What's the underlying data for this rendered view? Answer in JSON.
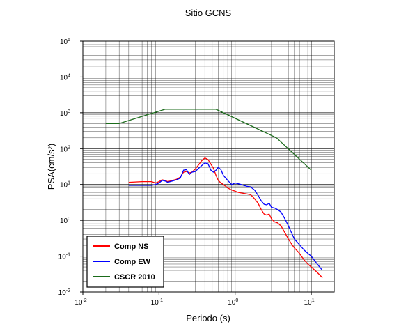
{
  "chart_data": {
    "type": "line",
    "title": "Sitio GCNS",
    "xlabel": "Periodo (s)",
    "ylabel": "PSA(cm/s²)",
    "xscale": "log",
    "yscale": "log",
    "xlim": [
      0.01,
      20
    ],
    "ylim": [
      0.01,
      100000
    ],
    "grid": true,
    "legend_position": "bottom-left",
    "x_ticks": [
      {
        "base": "10",
        "exp": "-2",
        "value": 0.01
      },
      {
        "base": "10",
        "exp": "-1",
        "value": 0.1
      },
      {
        "base": "10",
        "exp": "0",
        "value": 1
      },
      {
        "base": "10",
        "exp": "1",
        "value": 10
      }
    ],
    "y_ticks": [
      {
        "base": "10",
        "exp": "-2",
        "value": 0.01
      },
      {
        "base": "10",
        "exp": "-1",
        "value": 0.1
      },
      {
        "base": "10",
        "exp": "0",
        "value": 1
      },
      {
        "base": "10",
        "exp": "1",
        "value": 10
      },
      {
        "base": "10",
        "exp": "2",
        "value": 100
      },
      {
        "base": "10",
        "exp": "3",
        "value": 1000
      },
      {
        "base": "10",
        "exp": "4",
        "value": 10000
      },
      {
        "base": "10",
        "exp": "5",
        "value": 100000
      }
    ],
    "series": [
      {
        "name": "Comp NS",
        "color": "#ff0000",
        "points": [
          [
            0.04,
            11.5
          ],
          [
            0.06,
            12
          ],
          [
            0.08,
            12
          ],
          [
            0.09,
            11
          ],
          [
            0.1,
            12
          ],
          [
            0.11,
            13.5
          ],
          [
            0.12,
            13
          ],
          [
            0.13,
            12
          ],
          [
            0.15,
            13
          ],
          [
            0.17,
            14
          ],
          [
            0.19,
            16
          ],
          [
            0.21,
            22
          ],
          [
            0.23,
            23
          ],
          [
            0.25,
            21
          ],
          [
            0.27,
            22
          ],
          [
            0.3,
            27
          ],
          [
            0.33,
            35
          ],
          [
            0.36,
            45
          ],
          [
            0.4,
            55
          ],
          [
            0.44,
            50
          ],
          [
            0.48,
            37
          ],
          [
            0.52,
            28
          ],
          [
            0.56,
            18
          ],
          [
            0.6,
            13
          ],
          [
            0.65,
            11
          ],
          [
            0.7,
            10
          ],
          [
            0.8,
            8
          ],
          [
            0.9,
            7
          ],
          [
            1.0,
            6.5
          ],
          [
            1.1,
            6
          ],
          [
            1.2,
            5.8
          ],
          [
            1.4,
            5.5
          ],
          [
            1.6,
            5.2
          ],
          [
            1.8,
            4
          ],
          [
            2.0,
            3
          ],
          [
            2.2,
            2
          ],
          [
            2.4,
            1.5
          ],
          [
            2.6,
            1.4
          ],
          [
            2.8,
            1.5
          ],
          [
            3.0,
            1.1
          ],
          [
            3.3,
            0.9
          ],
          [
            3.6,
            0.85
          ],
          [
            4.0,
            0.7
          ],
          [
            4.5,
            0.45
          ],
          [
            5.0,
            0.3
          ],
          [
            5.5,
            0.22
          ],
          [
            6.0,
            0.17
          ],
          [
            7.0,
            0.12
          ],
          [
            8.0,
            0.08
          ],
          [
            9.0,
            0.06
          ],
          [
            10,
            0.05
          ],
          [
            12,
            0.035
          ],
          [
            14,
            0.025
          ]
        ]
      },
      {
        "name": "Comp EW",
        "color": "#0000ff",
        "points": [
          [
            0.04,
            9.5
          ],
          [
            0.06,
            9.5
          ],
          [
            0.08,
            9.5
          ],
          [
            0.09,
            10
          ],
          [
            0.1,
            11
          ],
          [
            0.11,
            13
          ],
          [
            0.12,
            12.5
          ],
          [
            0.13,
            11.5
          ],
          [
            0.15,
            12.5
          ],
          [
            0.17,
            13.5
          ],
          [
            0.19,
            15
          ],
          [
            0.21,
            25
          ],
          [
            0.23,
            26
          ],
          [
            0.25,
            19
          ],
          [
            0.27,
            22
          ],
          [
            0.3,
            23
          ],
          [
            0.33,
            28
          ],
          [
            0.36,
            33
          ],
          [
            0.4,
            40
          ],
          [
            0.44,
            38
          ],
          [
            0.48,
            25
          ],
          [
            0.52,
            22
          ],
          [
            0.56,
            25
          ],
          [
            0.6,
            30
          ],
          [
            0.65,
            26
          ],
          [
            0.7,
            18
          ],
          [
            0.8,
            13
          ],
          [
            0.9,
            10
          ],
          [
            1.0,
            11
          ],
          [
            1.1,
            10.5
          ],
          [
            1.2,
            10
          ],
          [
            1.4,
            9
          ],
          [
            1.6,
            8.5
          ],
          [
            1.8,
            7
          ],
          [
            2.0,
            5
          ],
          [
            2.2,
            3.5
          ],
          [
            2.4,
            2.8
          ],
          [
            2.6,
            2.7
          ],
          [
            2.8,
            3
          ],
          [
            3.0,
            2.3
          ],
          [
            3.3,
            2.2
          ],
          [
            3.6,
            2.0
          ],
          [
            4.0,
            1.7
          ],
          [
            4.5,
            1.1
          ],
          [
            5.0,
            0.7
          ],
          [
            5.5,
            0.45
          ],
          [
            6.0,
            0.3
          ],
          [
            7.0,
            0.21
          ],
          [
            8.0,
            0.15
          ],
          [
            9.0,
            0.12
          ],
          [
            10,
            0.1
          ],
          [
            12,
            0.06
          ],
          [
            14,
            0.04
          ]
        ]
      },
      {
        "name": "CSCR 2010",
        "color": "#1a6b1a",
        "points": [
          [
            0.02,
            500
          ],
          [
            0.03,
            500
          ],
          [
            0.12,
            1250
          ],
          [
            0.56,
            1250
          ],
          [
            3.5,
            200
          ],
          [
            10,
            25
          ]
        ]
      }
    ]
  }
}
